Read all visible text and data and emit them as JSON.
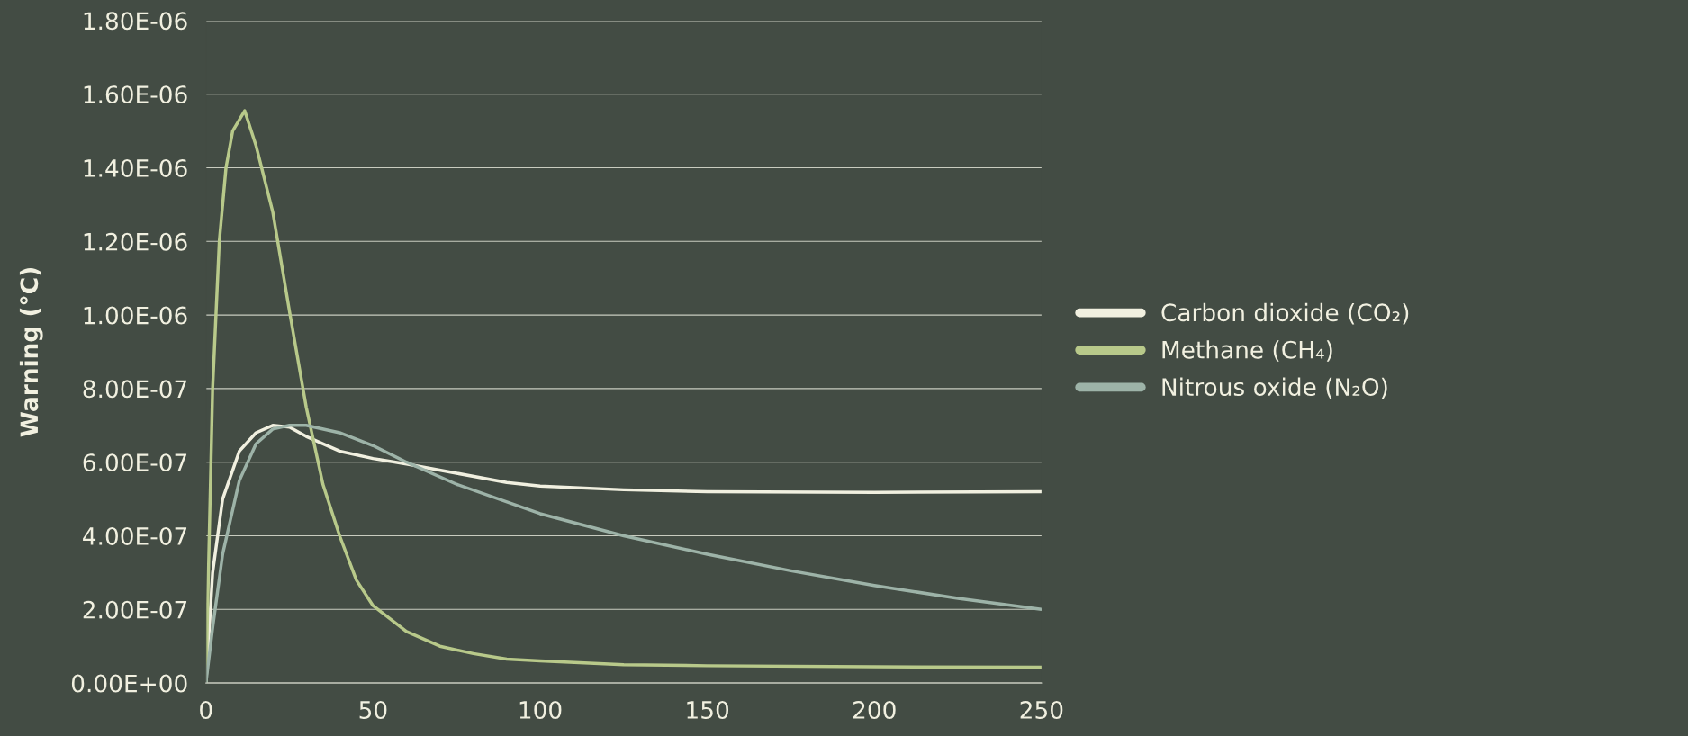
{
  "chart_data": {
    "type": "line",
    "ylabel": "Warning (°C)",
    "xlim": [
      0,
      250
    ],
    "xticks": [
      0,
      50,
      100,
      150,
      200,
      250
    ],
    "ylim": [
      0,
      1.8e-06
    ],
    "yticks": [
      {
        "value": 0,
        "label": "0.00E+00"
      },
      {
        "value": 2e-07,
        "label": "2.00E-07"
      },
      {
        "value": 4e-07,
        "label": "4.00E-07"
      },
      {
        "value": 6e-07,
        "label": "6.00E-07"
      },
      {
        "value": 8e-07,
        "label": "8.00E-07"
      },
      {
        "value": 1e-06,
        "label": "1.00E-06"
      },
      {
        "value": 1.2e-06,
        "label": "1.20E-06"
      },
      {
        "value": 1.4e-06,
        "label": "1.40E-06"
      },
      {
        "value": 1.6e-06,
        "label": "1.60E-06"
      },
      {
        "value": 1.8e-06,
        "label": "1.80E-06"
      }
    ],
    "grid": "y",
    "legend": "right",
    "line_style": "solid",
    "marker": "none",
    "series": [
      {
        "name": "Carbon dioxide (CO₂)",
        "color": "#f1f0e0",
        "x": [
          0,
          2,
          5,
          10,
          15,
          20,
          25,
          30,
          40,
          50,
          60,
          75,
          90,
          100,
          125,
          150,
          200,
          250
        ],
        "values": [
          0,
          3e-07,
          5e-07,
          6.3e-07,
          6.8e-07,
          7e-07,
          6.95e-07,
          6.7e-07,
          6.3e-07,
          6.1e-07,
          5.95e-07,
          5.7e-07,
          5.45e-07,
          5.35e-07,
          5.25e-07,
          5.2e-07,
          5.18e-07,
          5.2e-07
        ]
      },
      {
        "name": "Methane (CH₄)",
        "color": "#b8c98a",
        "x": [
          0,
          2,
          4,
          6,
          8,
          11.6,
          15,
          20,
          25,
          30,
          35,
          40,
          45,
          50,
          60,
          70,
          80,
          90,
          100,
          125,
          150,
          200,
          250
        ],
        "values": [
          0,
          8e-07,
          1.2e-06,
          1.4e-06,
          1.5e-06,
          1.555e-06,
          1.46e-06,
          1.28e-06,
          1.01e-06,
          7.5e-07,
          5.4e-07,
          4e-07,
          2.8e-07,
          2.1e-07,
          1.4e-07,
          1e-07,
          8e-08,
          6.5e-08,
          6e-08,
          5e-08,
          4.7e-08,
          4.4e-08,
          4.3e-08
        ]
      },
      {
        "name": "Nitrous oxide (N₂O)",
        "color": "#9db3a8",
        "x": [
          0,
          2,
          5,
          10,
          15,
          20,
          25,
          30,
          40,
          50,
          60,
          75,
          100,
          125,
          150,
          175,
          200,
          225,
          250
        ],
        "values": [
          0,
          1.5e-07,
          3.5e-07,
          5.5e-07,
          6.5e-07,
          6.9e-07,
          7e-07,
          7e-07,
          6.8e-07,
          6.45e-07,
          6e-07,
          5.4e-07,
          4.6e-07,
          4e-07,
          3.5e-07,
          3.05e-07,
          2.65e-07,
          2.3e-07,
          2e-07
        ]
      }
    ]
  }
}
